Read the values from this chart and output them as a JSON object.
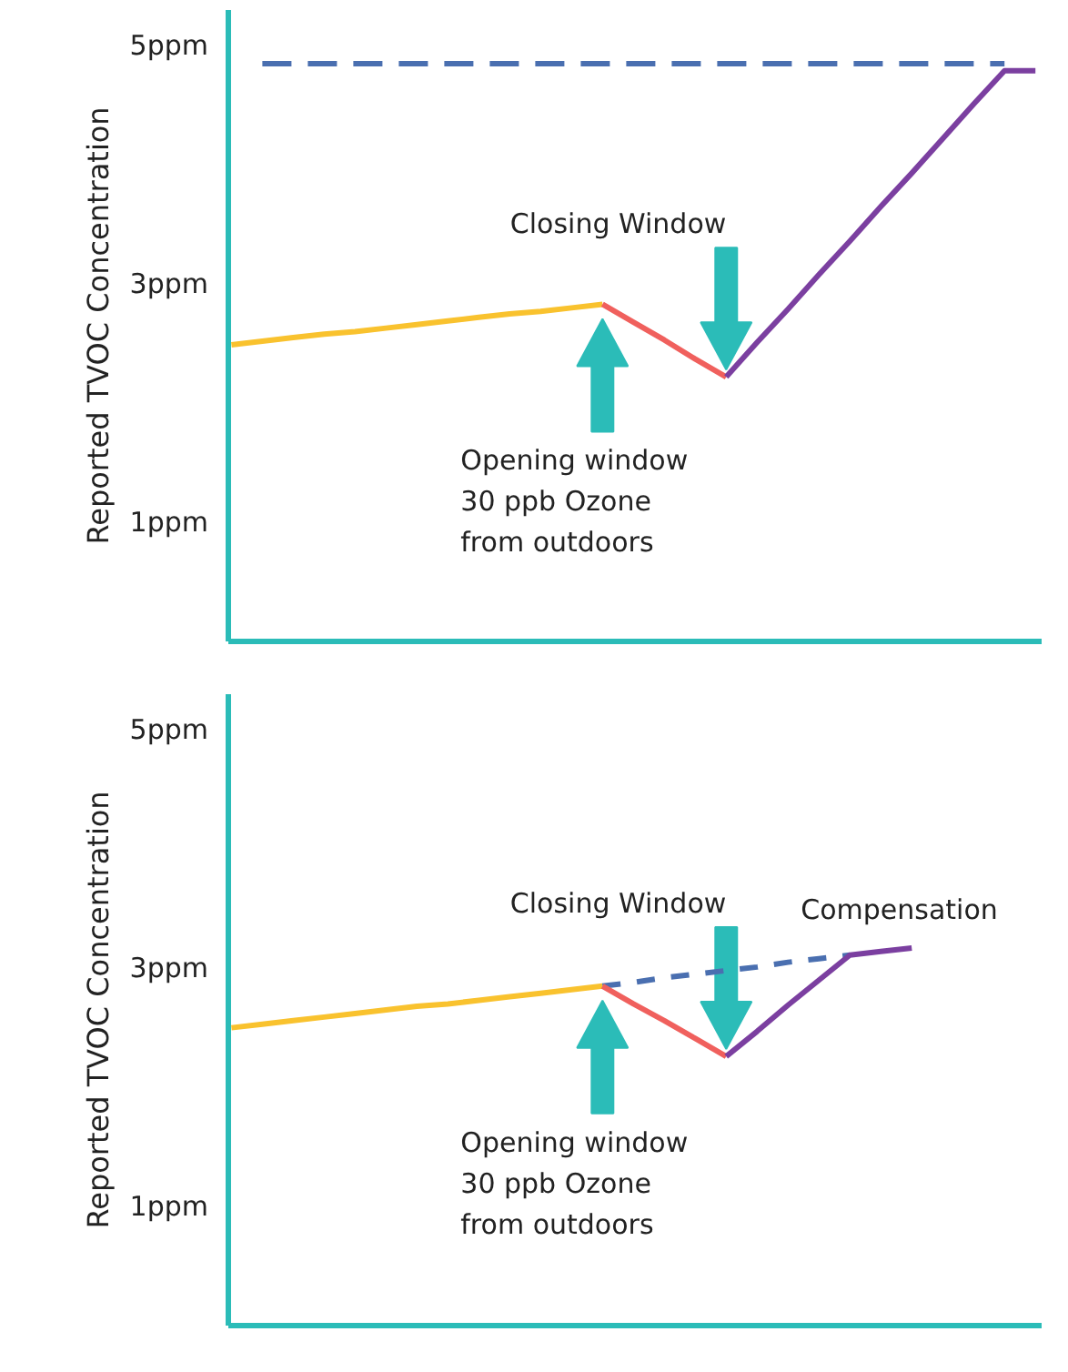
{
  "chart_data": [
    {
      "type": "line",
      "ylabel": "Reported TVOC Concentration",
      "categories": [
        null,
        null,
        null,
        null,
        null,
        null,
        null,
        null,
        null,
        null,
        null,
        null,
        null,
        null,
        null,
        null,
        null,
        null,
        null,
        null,
        null,
        null,
        null,
        null,
        null,
        null,
        null
      ],
      "ylim": [
        0,
        5.3
      ],
      "yticks": [
        {
          "value": 1,
          "label": "1ppm"
        },
        {
          "value": 3,
          "label": "3ppm"
        },
        {
          "value": 5,
          "label": "5ppm"
        }
      ],
      "tick_labels": "y",
      "grid": false,
      "series": [
        {
          "color": "#4a6fb0",
          "line_style": "dashed",
          "values": [
            null,
            4.85,
            4.85,
            4.85,
            4.85,
            4.85,
            4.85,
            4.85,
            4.85,
            4.85,
            4.85,
            4.85,
            4.85,
            4.85,
            4.85,
            4.85,
            4.85,
            4.85,
            4.85,
            4.85,
            4.85,
            4.85,
            4.85,
            4.85,
            4.85,
            4.85,
            null
          ]
        },
        {
          "color": "#f9c22e",
          "line_style": "solid",
          "values": [
            2.49,
            2.52,
            2.55,
            2.58,
            2.6,
            2.63,
            2.66,
            2.69,
            2.72,
            2.75,
            2.77,
            2.8,
            2.83,
            null,
            null,
            null,
            null,
            null,
            null,
            null,
            null,
            null,
            null,
            null,
            null,
            null,
            null
          ]
        },
        {
          "color": "#f0605d",
          "line_style": "solid",
          "values": [
            null,
            null,
            null,
            null,
            null,
            null,
            null,
            null,
            null,
            null,
            null,
            null,
            2.83,
            2.68,
            2.53,
            2.37,
            2.22,
            null,
            null,
            null,
            null,
            null,
            null,
            null,
            null,
            null,
            null
          ]
        },
        {
          "color": "#7b3fa0",
          "line_style": "solid",
          "values": [
            null,
            null,
            null,
            null,
            null,
            null,
            null,
            null,
            null,
            null,
            null,
            null,
            null,
            null,
            null,
            null,
            2.22,
            2.51,
            2.79,
            3.08,
            3.36,
            3.65,
            3.93,
            4.22,
            4.51,
            4.79,
            4.79
          ]
        }
      ],
      "annotations": [
        "Opening window\n30 ppb Ozone\nfrom outdoors",
        "Closing Window"
      ]
    },
    {
      "type": "line",
      "ylabel": "Reported TVOC Concentration",
      "categories": [
        null,
        null,
        null,
        null,
        null,
        null,
        null,
        null,
        null,
        null,
        null,
        null,
        null,
        null,
        null,
        null,
        null,
        null,
        null,
        null,
        null,
        null,
        null,
        null,
        null,
        null,
        null
      ],
      "ylim": [
        0,
        5.3
      ],
      "yticks": [
        {
          "value": 1,
          "label": "1ppm"
        },
        {
          "value": 3,
          "label": "3ppm"
        },
        {
          "value": 5,
          "label": "5ppm"
        }
      ],
      "tick_labels": "y",
      "grid": false,
      "series": [
        {
          "color": "#4a6fb0",
          "line_style": "dashed",
          "values": [
            null,
            null,
            null,
            null,
            null,
            null,
            null,
            null,
            null,
            null,
            null,
            null,
            2.85,
            2.88,
            2.92,
            2.95,
            2.98,
            3.01,
            3.05,
            3.08,
            3.11,
            null,
            null,
            null,
            null,
            null,
            null
          ]
        },
        {
          "color": "#f9c22e",
          "line_style": "solid",
          "values": [
            2.5,
            2.53,
            2.56,
            2.59,
            2.62,
            2.65,
            2.68,
            2.7,
            2.73,
            2.76,
            2.79,
            2.82,
            2.85,
            null,
            null,
            null,
            null,
            null,
            null,
            null,
            null,
            null,
            null,
            null,
            null,
            null,
            null
          ]
        },
        {
          "color": "#f0605d",
          "line_style": "solid",
          "values": [
            null,
            null,
            null,
            null,
            null,
            null,
            null,
            null,
            null,
            null,
            null,
            null,
            2.85,
            2.7,
            2.56,
            2.41,
            2.26,
            null,
            null,
            null,
            null,
            null,
            null,
            null,
            null,
            null,
            null
          ]
        },
        {
          "color": "#7b3fa0",
          "line_style": "solid",
          "values": [
            null,
            null,
            null,
            null,
            null,
            null,
            null,
            null,
            null,
            null,
            null,
            null,
            null,
            null,
            null,
            null,
            2.26,
            2.47,
            2.69,
            2.9,
            3.11,
            3.14,
            3.17,
            null,
            null,
            null,
            null
          ]
        }
      ],
      "annotations": [
        "Opening window\n30 ppb Ozone\nfrom outdoors",
        "Closing Window",
        "Compensation"
      ]
    }
  ]
}
